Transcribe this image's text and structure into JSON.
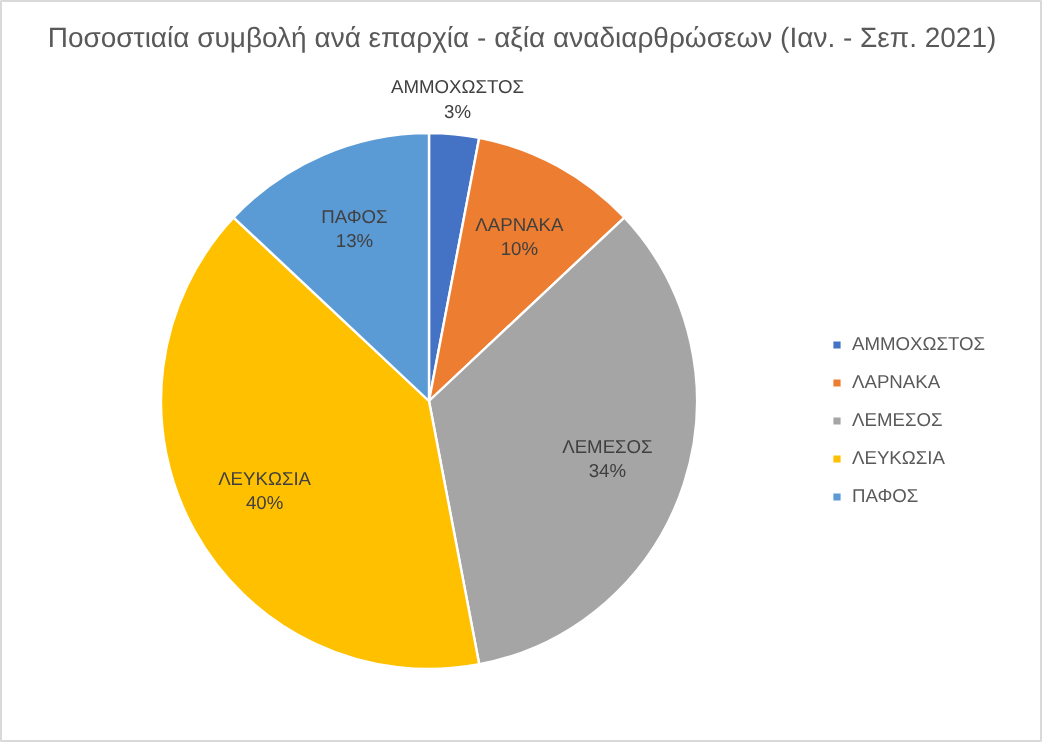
{
  "chart_data": {
    "type": "pie",
    "title": "Ποσοστιαία συμβολή ανά επαρχία - αξία αναδιαρθρώσεων (Ιαν. - Σεπ. 2021)",
    "categories": [
      "ΑΜΜΟΧΩΣΤΟΣ",
      "ΛΑΡΝΑΚΑ",
      "ΛΕΜΕΣΟΣ",
      "ΛΕΥΚΩΣΙΑ",
      "ΠΑΦΟΣ"
    ],
    "values": [
      3,
      10,
      34,
      40,
      13
    ],
    "value_labels": [
      "3%",
      "10%",
      "34%",
      "40%",
      "13%"
    ],
    "colors": [
      "#4472c4",
      "#ed7d31",
      "#a5a5a5",
      "#ffc000",
      "#5b9bd5"
    ],
    "legend": "right"
  }
}
